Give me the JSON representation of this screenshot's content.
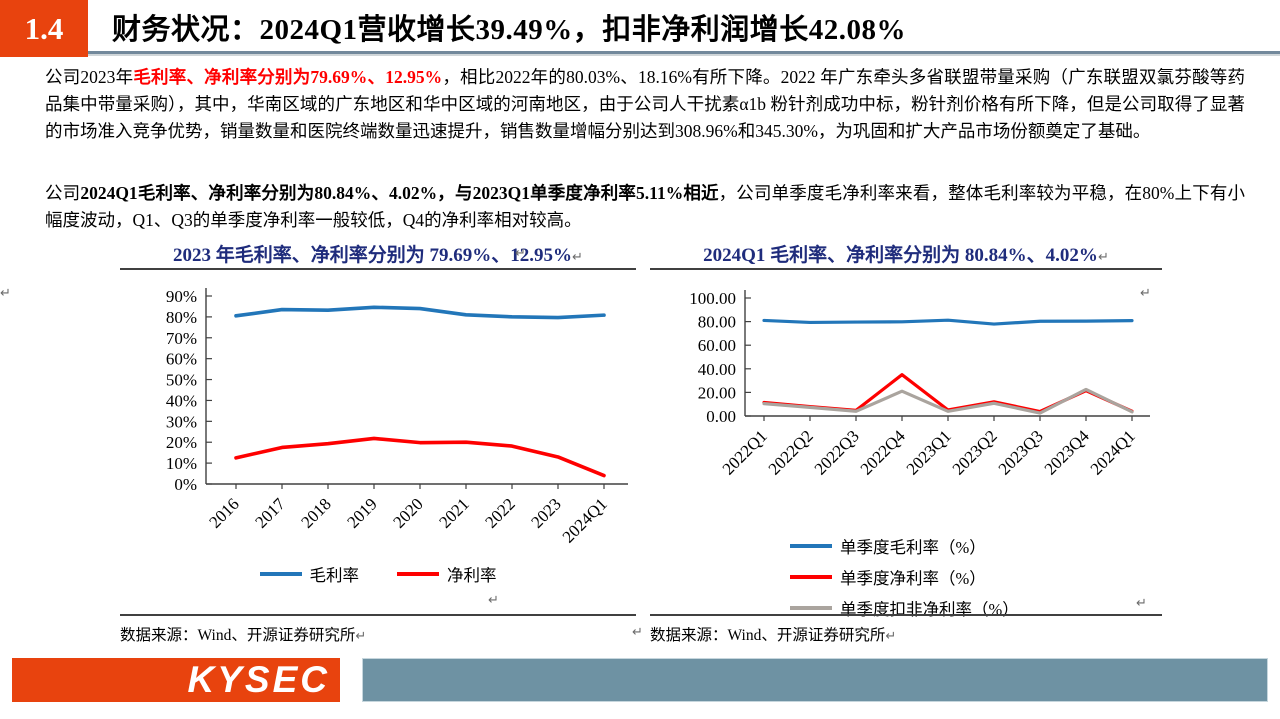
{
  "header": {
    "section_no": "1.4",
    "title": "财务状况：2024Q1营收增长39.49%，扣非净利润增长42.08%"
  },
  "paragraphs": {
    "p1_pre": "公司2023年",
    "p1_red": "毛利率、净利率分别为79.69%、12.95%",
    "p1_rest": "，相比2022年的80.03%、18.16%有所下降。2022 年广东牵头多省联盟带量采购（广东联盟双氯芬酸等药品集中带量采购），其中，华南区域的广东地区和华中区域的河南地区，由于公司人干扰素α1b 粉针剂成功中标，粉针剂价格有所下降，但是公司取得了显著的市场准入竞争优势，销量数量和医院终端数量迅速提升，销售数量增幅分别达到308.96%和345.30%，为巩固和扩大产品市场份额奠定了基础。",
    "p2_pre": "公司",
    "p2_bold": "2024Q1毛利率、净利率分别为80.84%、4.02%，与2023Q1单季度净利率5.11%相近",
    "p2_rest": "，公司单季度毛净利率来看，整体毛利率较为平稳，在80%上下有小幅度波动，Q1、Q3的单季度净利率一般较低，Q4的净利率相对较高。"
  },
  "marks": {
    "return": "↵"
  },
  "left_panel": {
    "title": "2023 年毛利率、净利率分别为 79.69%、12.95%",
    "source": "数据来源：Wind、开源证券研究所"
  },
  "right_panel": {
    "title": "2024Q1 毛利率、净利率分别为 80.84%、4.02%",
    "source": "数据来源：Wind、开源证券研究所"
  },
  "footer": {
    "logo_text": "KYSEC"
  },
  "colors": {
    "accent_red": "#E8430E",
    "title_navy": "#1F2C7C",
    "line_blue": "#2276B9",
    "line_red": "#FE0000",
    "line_gray": "#AAA49E",
    "footer_slate": "#6E92A3",
    "highlight_red": "#FF0000"
  },
  "chart_data": [
    {
      "type": "line",
      "title": "2023 年毛利率、净利率分别为 79.69%、12.95%",
      "categories": [
        "2016",
        "2017",
        "2018",
        "2019",
        "2020",
        "2021",
        "2022",
        "2023",
        "2024Q1"
      ],
      "series": [
        {
          "name": "毛利率",
          "color": "#2276B9",
          "values": [
            80.5,
            83.5,
            83.2,
            84.6,
            84.0,
            81.0,
            80.03,
            79.69,
            80.84
          ]
        },
        {
          "name": "净利率",
          "color": "#FE0000",
          "values": [
            12.5,
            17.5,
            19.3,
            21.8,
            19.8,
            20.0,
            18.16,
            12.95,
            4.02
          ]
        }
      ],
      "ylim": [
        0,
        90
      ],
      "ytick_step": 10,
      "ytick_format": "percent",
      "xlabel": "",
      "ylabel": "",
      "grid": false,
      "legend_position": "bottom"
    },
    {
      "type": "line",
      "title": "2024Q1 毛利率、净利率分别为 80.84%、4.02%",
      "categories": [
        "2022Q1",
        "2022Q2",
        "2022Q3",
        "2022Q4",
        "2023Q1",
        "2023Q2",
        "2023Q3",
        "2023Q4",
        "2024Q1"
      ],
      "series": [
        {
          "name": "单季度毛利率（%）",
          "color": "#2276B9",
          "values": [
            81.0,
            79.3,
            79.6,
            79.8,
            81.2,
            77.9,
            80.3,
            80.4,
            80.84
          ]
        },
        {
          "name": "单季度净利率（%）",
          "color": "#FE0000",
          "values": [
            11.5,
            8.0,
            4.8,
            35.0,
            5.11,
            12.0,
            3.8,
            21.5,
            4.02
          ]
        },
        {
          "name": "单季度扣非净利率（%）",
          "color": "#AAA49E",
          "values": [
            10.5,
            7.3,
            4.0,
            21.0,
            4.0,
            10.8,
            2.5,
            22.5,
            3.5
          ]
        }
      ],
      "ylim": [
        0,
        100
      ],
      "ytick_step": 20,
      "ytick_format": "decimal2",
      "xlabel": "",
      "ylabel": "",
      "grid": false,
      "legend_position": "left-stack"
    }
  ]
}
